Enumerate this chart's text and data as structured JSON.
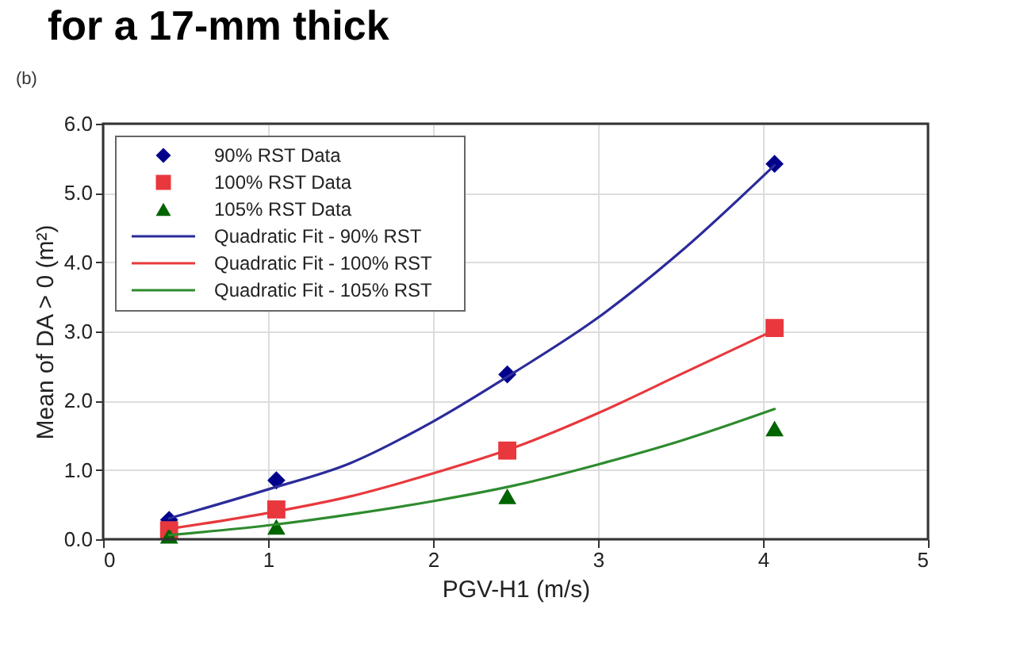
{
  "chart_data": {
    "type": "scatter",
    "title": "for a 17-mm thick",
    "xlabel": "PGV-H1 (m/s)",
    "ylabel": "Mean of DA > 0 (m²)",
    "annotations": [
      "(b)"
    ],
    "xlim": [
      0,
      5
    ],
    "xticks": [
      0,
      1,
      2,
      3,
      4,
      5
    ],
    "ylim": [
      0,
      6
    ],
    "yticks": [
      {
        "value": 0,
        "label": "0.0"
      },
      {
        "value": 1,
        "label": "1.0"
      },
      {
        "value": 2,
        "label": "2.0"
      },
      {
        "value": 3,
        "label": "3.0"
      },
      {
        "value": 4,
        "label": "4.0"
      },
      {
        "value": 5,
        "label": "5.0"
      },
      {
        "value": 6,
        "label": "6.0"
      }
    ],
    "grid": true,
    "legend": "top left",
    "series": [
      {
        "name": "90% RST Data",
        "marker": "diamond",
        "color": "#00008b",
        "x": [
          0.4,
          1.05,
          2.45,
          4.07
        ],
        "values": [
          0.28,
          0.85,
          2.38,
          5.42
        ]
      },
      {
        "name": "100% RST Data",
        "marker": "square",
        "color": "#e8383d",
        "x": [
          0.4,
          1.05,
          2.45,
          4.07
        ],
        "values": [
          0.13,
          0.43,
          1.28,
          3.05
        ]
      },
      {
        "name": "105% RST Data",
        "marker": "triangle",
        "color": "#006400",
        "x": [
          0.4,
          1.05,
          2.45,
          4.07
        ],
        "values": [
          0.05,
          0.18,
          0.62,
          1.6
        ]
      },
      {
        "name": "Quadratic Fit - 90% RST",
        "type": "line",
        "marker": "none",
        "color": "#2b2b9b",
        "x": [
          0.4,
          1,
          1.5,
          2,
          2.5,
          3,
          3.5,
          4.07
        ],
        "values": [
          0.3,
          0.72,
          1.1,
          1.7,
          2.42,
          3.2,
          4.15,
          5.4
        ]
      },
      {
        "name": "Quadratic Fit - 100% RST",
        "type": "line",
        "marker": "none",
        "color": "#e8383d",
        "x": [
          0.4,
          1,
          1.5,
          2,
          2.5,
          3,
          3.5,
          4.07
        ],
        "values": [
          0.15,
          0.38,
          0.62,
          0.95,
          1.33,
          1.82,
          2.38,
          3.02
        ]
      },
      {
        "name": "Quadratic Fit - 105% RST",
        "type": "line",
        "marker": "none",
        "color": "#2e8b2e",
        "x": [
          0.4,
          1,
          1.5,
          2,
          2.5,
          3,
          3.5,
          4.07
        ],
        "values": [
          0.06,
          0.2,
          0.36,
          0.55,
          0.78,
          1.08,
          1.42,
          1.88
        ]
      }
    ]
  }
}
